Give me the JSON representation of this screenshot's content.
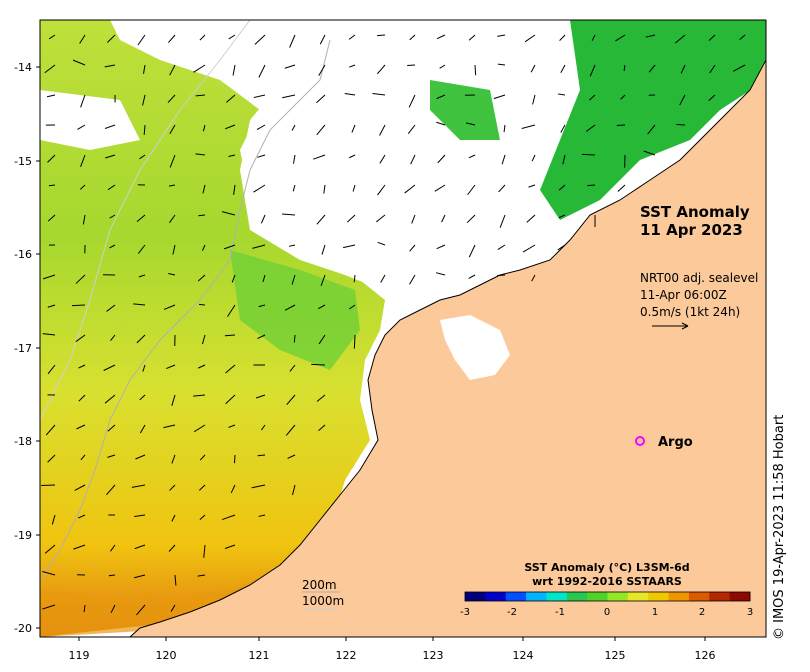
{
  "title": {
    "line1": "SST Anomaly",
    "line2": "11 Apr 2023"
  },
  "currents": {
    "line1": "NRT00 adj. sealevel",
    "line2": "11-Apr 06:00Z",
    "line3": "0.5m/s (1kt 24h)"
  },
  "argo_label": "Argo",
  "isobaths": {
    "label1": "200m",
    "label2": "1000m"
  },
  "colorbar": {
    "title_line1": "SST Anomaly (°C) L3SM-6d",
    "title_line2": "wrt 1992-2016 SSTAARS",
    "ticks": [
      "-3",
      "-2",
      "-1",
      "0",
      "1",
      "2",
      "3"
    ],
    "colors": [
      "#00007a",
      "#0000c8",
      "#0050ff",
      "#00b4ff",
      "#00e6c8",
      "#28c850",
      "#50d228",
      "#96e628",
      "#e6e628",
      "#f0c800",
      "#f09600",
      "#dc5a00",
      "#b42800",
      "#8c0a00"
    ]
  },
  "axes": {
    "longitude_ticks": [
      "119",
      "120",
      "121",
      "122",
      "123",
      "124",
      "125",
      "126"
    ],
    "latitude_ticks": [
      "-14",
      "-15",
      "-16",
      "-17",
      "-18",
      "-19",
      "-20"
    ]
  },
  "credit": "© IMOS 19-Apr-2023 11:58 Hobart",
  "colors": {
    "land": "#fbc99a",
    "no_data": "#ffffff",
    "argo_marker": "#ff00ff"
  }
}
